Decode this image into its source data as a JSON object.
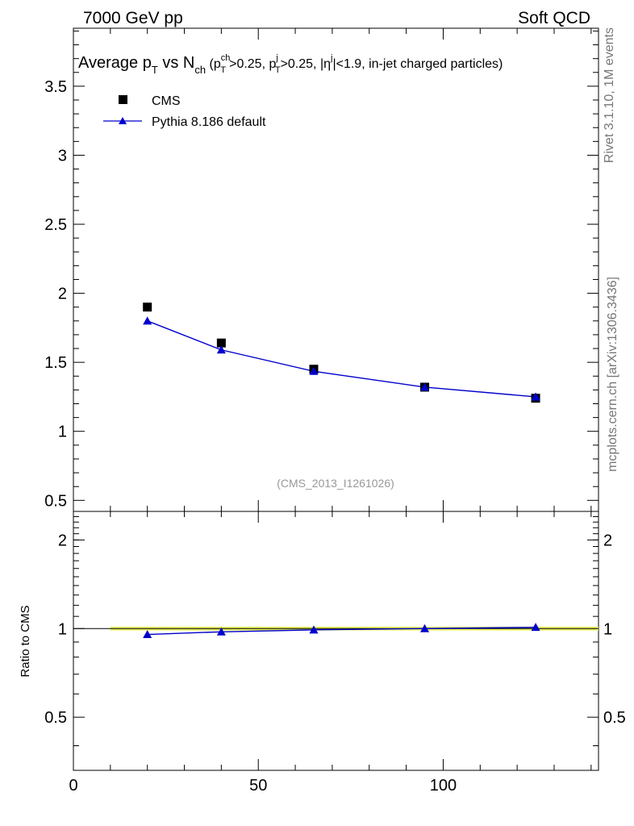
{
  "header": {
    "left": "7000 GeV pp",
    "right": "Soft QCD"
  },
  "side_labels": {
    "rivet": "Rivet 3.1.10,  1M events",
    "mcplots": "mcplots.cern.ch [arXiv:1306.3436]"
  },
  "title_parts": {
    "a": "Average p",
    "a_sub": "T",
    "b": " vs N",
    "b_sub": "ch",
    "c": " (p",
    "c_sup": "ch",
    "c_sub": "T",
    "d": ">0.25, p",
    "d_sup": "j",
    "d_sub": "T",
    "e": ">0.25, |η",
    "e_sup": "j",
    "f": "|<1.9, in-jet charged particles)"
  },
  "watermark": "(CMS_2013_I1261026)",
  "chart_data": [
    {
      "type": "scatter",
      "panel": "main",
      "xlim": [
        0,
        142
      ],
      "ylim": [
        0.42,
        3.92
      ],
      "yticks": [
        {
          "v": 0.5,
          "label": "0.5"
        },
        {
          "v": 1,
          "label": "1"
        },
        {
          "v": 1.5,
          "label": "1.5"
        },
        {
          "v": 2,
          "label": "2"
        },
        {
          "v": 2.5,
          "label": "2.5"
        },
        {
          "v": 3,
          "label": "3"
        },
        {
          "v": 3.5,
          "label": "3.5"
        }
      ],
      "legend_position": "top-left",
      "series": [
        {
          "name": "CMS",
          "marker": "square",
          "color": "#000000",
          "x": [
            20,
            40,
            65,
            95,
            125
          ],
          "y": [
            1.9,
            1.64,
            1.45,
            1.32,
            1.24
          ]
        },
        {
          "name": "Pythia 8.186 default",
          "marker": "triangle",
          "color": "#0000cc",
          "line": true,
          "x": [
            20,
            40,
            65,
            95,
            125
          ],
          "y": [
            1.8,
            1.59,
            1.435,
            1.32,
            1.25
          ]
        }
      ]
    },
    {
      "type": "line",
      "panel": "ratio",
      "ylabel": "Ratio to CMS",
      "xlim": [
        0,
        142
      ],
      "ylim": [
        0.33,
        2.5
      ],
      "xticks": [
        {
          "v": 0,
          "label": "0"
        },
        {
          "v": 50,
          "label": "50"
        },
        {
          "v": 100,
          "label": "100"
        }
      ],
      "yticks": [
        {
          "v": 0.5,
          "label": "0.5"
        },
        {
          "v": 1,
          "label": "1"
        },
        {
          "v": 2,
          "label": "2"
        }
      ],
      "band": {
        "x": [
          10,
          142
        ],
        "ylow": 0.985,
        "yhigh": 1.015,
        "color": "#e8f060"
      },
      "series": [
        {
          "name": "Pythia 8.186 default",
          "color": "#0000cc",
          "x": [
            20,
            40,
            65,
            95,
            125
          ],
          "y": [
            0.955,
            0.975,
            0.99,
            1.0,
            1.01
          ]
        }
      ]
    }
  ]
}
